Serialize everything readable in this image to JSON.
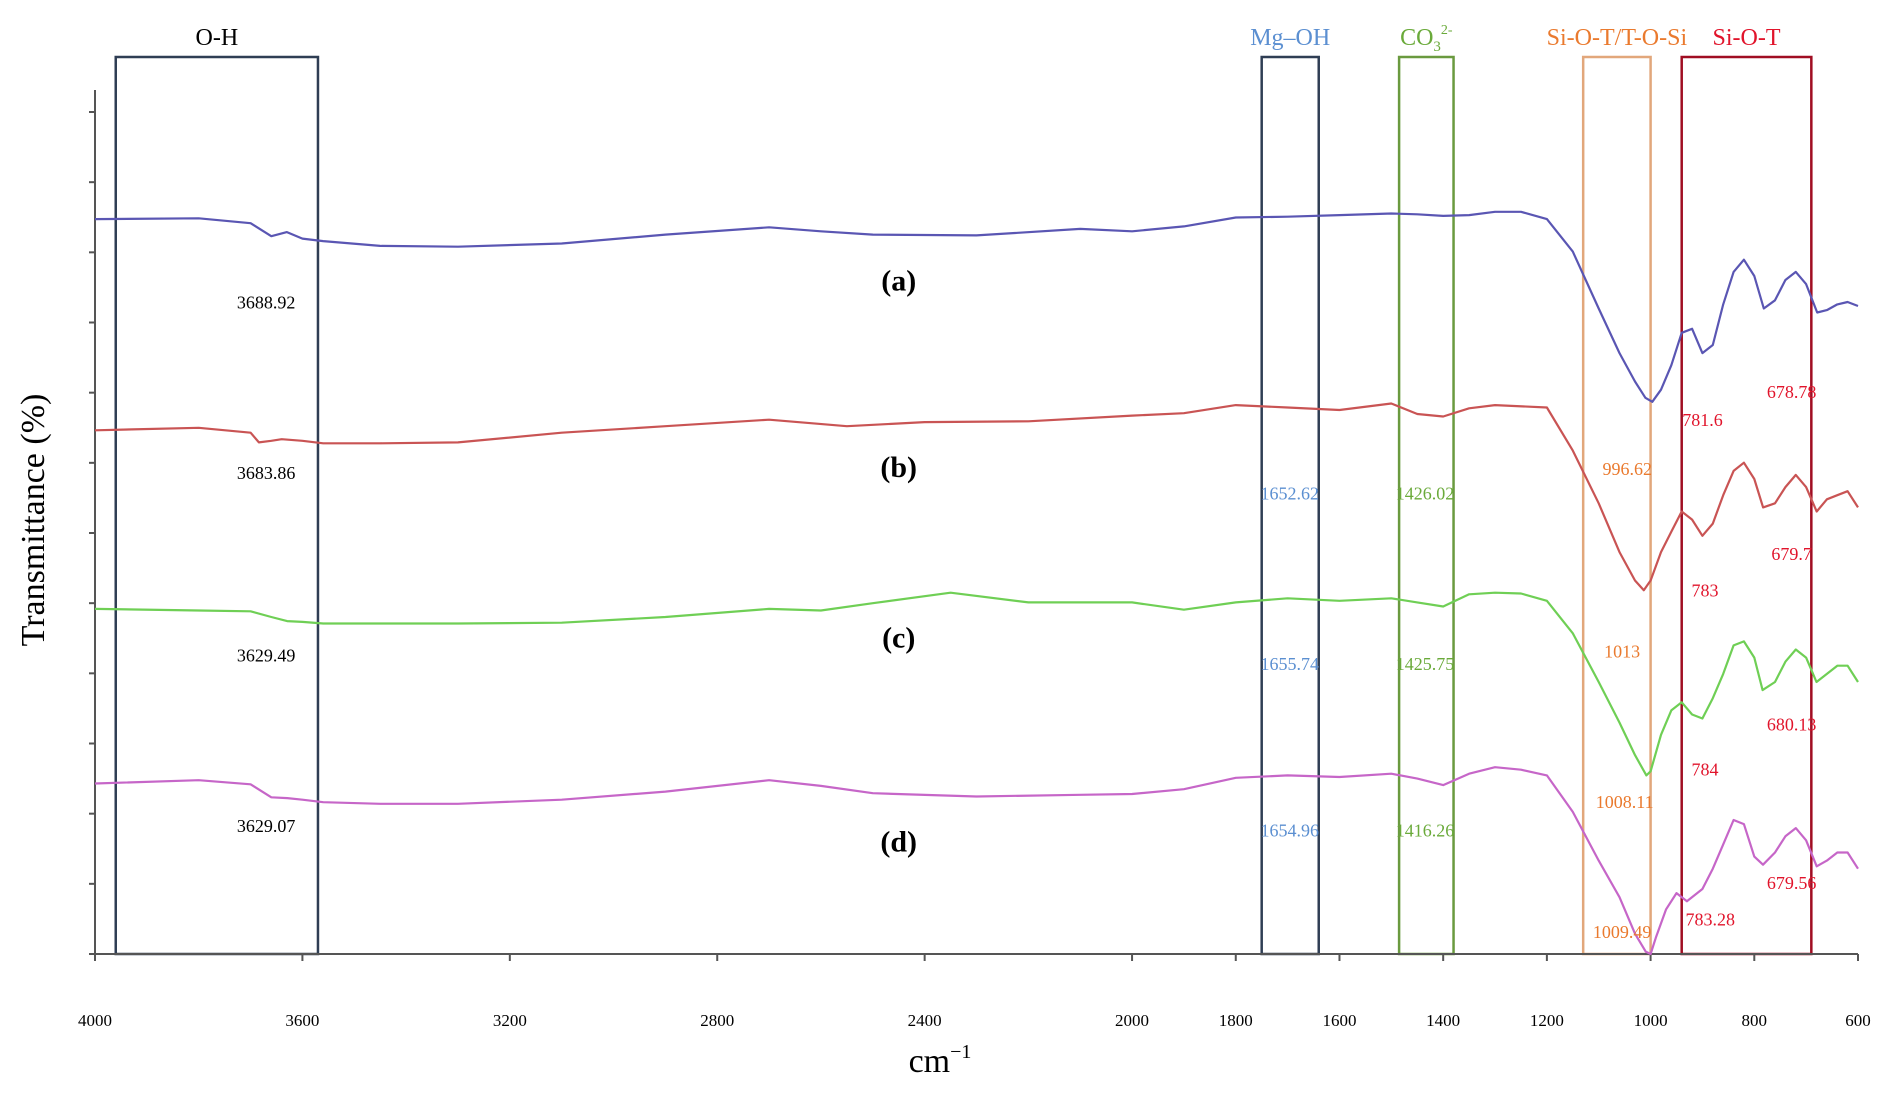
{
  "chart_data": {
    "type": "line",
    "title": "",
    "xlabel": "cm−1",
    "xlabel_base": "cm",
    "xlabel_sup": "−1",
    "ylabel": "Transmittance (%)",
    "x_reversed": true,
    "xlim": [
      4000,
      600
    ],
    "ylim": [
      0,
      100
    ],
    "x_ticks": [
      4000,
      3600,
      3200,
      2800,
      2400,
      2000,
      1800,
      1600,
      1400,
      1200,
      1000,
      800,
      600
    ],
    "x_tick_labels": [
      "4000",
      "3600",
      "3200",
      "2800",
      "2400",
      "2000",
      "1800",
      "1600",
      "1400",
      "1200",
      "1000",
      "800",
      "600"
    ],
    "y_tick_count": 13,
    "bands": [
      {
        "name": "O-H",
        "label": "O-H",
        "from": 3960,
        "to": 3570,
        "color": "#2f3e54",
        "label_color": "#000000"
      },
      {
        "name": "Mg-OH",
        "label": "Mg–OH",
        "from": 1750,
        "to": 1640,
        "color": "#2f3e54",
        "label_color": "#5b8fd1"
      },
      {
        "name": "CO3",
        "label": "CO",
        "label_sub": "3",
        "label_sup": "2-",
        "from": 1485,
        "to": 1380,
        "color": "#6a9a3f",
        "label_color": "#6aaa3a"
      },
      {
        "name": "Si-O-T/T-O-Si",
        "label": "Si-O-T/T-O-Si",
        "from": 1130,
        "to": 1000,
        "color": "#e2a77b",
        "label_color": "#ea7a2e"
      },
      {
        "name": "Si-O-T",
        "label": "Si-O-T",
        "from": 940,
        "to": 690,
        "color": "#a00d22",
        "label_color": "#e1142b"
      }
    ],
    "series": [
      {
        "name": "(a)",
        "label": "(a)",
        "color": "#5a56b3",
        "x": [
          4000,
          3800,
          3700,
          3660,
          3630,
          3600,
          3560,
          3450,
          3300,
          3100,
          2900,
          2700,
          2600,
          2500,
          2300,
          2100,
          2000,
          1900,
          1800,
          1700,
          1600,
          1500,
          1450,
          1400,
          1350,
          1300,
          1250,
          1200,
          1150,
          1100,
          1060,
          1030,
          1010,
          996.62,
          980,
          960,
          940,
          920,
          900,
          880,
          860,
          840,
          820,
          800,
          781.6,
          760,
          740,
          720,
          700,
          678.78,
          660,
          640,
          620,
          600
        ],
        "y": [
          90.5,
          90.6,
          90.0,
          88.4,
          88.9,
          88.1,
          87.8,
          87.2,
          87.1,
          87.5,
          88.6,
          89.5,
          89.0,
          88.6,
          88.5,
          89.3,
          89.0,
          89.6,
          90.7,
          90.8,
          91.0,
          91.2,
          91.1,
          90.9,
          91.0,
          91.4,
          91.4,
          90.5,
          86.5,
          79.5,
          74.0,
          70.5,
          68.5,
          68.0,
          69.5,
          72.5,
          76.5,
          77.0,
          74.0,
          75.0,
          80.0,
          84.0,
          85.5,
          83.5,
          79.5,
          80.5,
          83.0,
          84.0,
          82.5,
          79.0,
          79.3,
          80.0,
          80.3,
          79.8
        ]
      },
      {
        "name": "(b)",
        "label": "(b)",
        "color": "#c95454",
        "x": [
          4000,
          3800,
          3700,
          3683.86,
          3660,
          3640,
          3600,
          3560,
          3450,
          3300,
          3100,
          2900,
          2700,
          2550,
          2400,
          2200,
          2000,
          1900,
          1800,
          1700,
          1600,
          1500,
          1450,
          1400,
          1350,
          1300,
          1200,
          1150,
          1100,
          1060,
          1030,
          1013,
          1000,
          980,
          960,
          940,
          920,
          900,
          880,
          860,
          840,
          820,
          800,
          783,
          760,
          740,
          720,
          700,
          679.7,
          660,
          640,
          620,
          600
        ],
        "y": [
          64.5,
          64.8,
          64.2,
          63.0,
          63.2,
          63.4,
          63.2,
          62.9,
          62.9,
          63.0,
          64.2,
          65.0,
          65.8,
          65.0,
          65.5,
          65.6,
          66.3,
          66.6,
          67.6,
          67.3,
          67.0,
          67.8,
          66.5,
          66.2,
          67.2,
          67.6,
          67.3,
          62.0,
          55.5,
          49.5,
          46.0,
          44.8,
          46.0,
          49.5,
          52.0,
          54.5,
          53.5,
          51.5,
          53.0,
          56.5,
          59.5,
          60.5,
          58.5,
          55.0,
          55.5,
          57.5,
          59.0,
          57.5,
          54.5,
          56.0,
          56.5,
          57.0,
          55.0
        ]
      },
      {
        "name": "(c)",
        "label": "(c)",
        "color": "#6fcf55",
        "x": [
          4000,
          3800,
          3700,
          3660,
          3629.49,
          3600,
          3560,
          3450,
          3300,
          3100,
          2900,
          2700,
          2600,
          2500,
          2350,
          2200,
          2000,
          1900,
          1800,
          1700,
          1600,
          1500,
          1450,
          1400,
          1350,
          1300,
          1250,
          1200,
          1150,
          1100,
          1060,
          1030,
          1008.11,
          1000,
          980,
          960,
          940,
          920,
          900,
          880,
          860,
          840,
          820,
          800,
          784,
          760,
          740,
          720,
          700,
          680.13,
          660,
          640,
          620,
          600
        ],
        "y": [
          42.5,
          42.3,
          42.2,
          41.5,
          41.0,
          40.9,
          40.7,
          40.7,
          40.7,
          40.8,
          41.5,
          42.5,
          42.3,
          43.2,
          44.5,
          43.3,
          43.3,
          42.4,
          43.3,
          43.8,
          43.5,
          43.8,
          43.3,
          42.8,
          44.3,
          44.5,
          44.4,
          43.5,
          39.5,
          33.5,
          28.5,
          24.5,
          22.0,
          22.5,
          27.0,
          30.0,
          31.0,
          29.5,
          29.0,
          31.5,
          34.5,
          38.0,
          38.5,
          36.5,
          32.5,
          33.5,
          36.0,
          37.5,
          36.5,
          33.5,
          34.5,
          35.5,
          35.5,
          33.5
        ]
      },
      {
        "name": "(d)",
        "label": "(d)",
        "color": "#c666c8",
        "x": [
          4000,
          3800,
          3700,
          3660,
          3629.07,
          3600,
          3560,
          3450,
          3300,
          3100,
          2900,
          2700,
          2600,
          2500,
          2300,
          2100,
          2000,
          1900,
          1800,
          1700,
          1600,
          1500,
          1450,
          1400,
          1350,
          1300,
          1250,
          1200,
          1150,
          1100,
          1060,
          1030,
          1009.49,
          1000,
          990,
          970,
          950,
          930,
          900,
          880,
          860,
          840,
          820,
          800,
          783.28,
          760,
          740,
          720,
          700,
          679.56,
          660,
          640,
          620,
          600
        ],
        "y": [
          21.0,
          21.4,
          20.9,
          19.3,
          19.2,
          19.0,
          18.7,
          18.5,
          18.5,
          19.0,
          20.0,
          21.4,
          20.7,
          19.8,
          19.4,
          19.6,
          19.7,
          20.3,
          21.7,
          22.0,
          21.8,
          22.2,
          21.6,
          20.8,
          22.2,
          23.0,
          22.7,
          22.0,
          17.5,
          11.5,
          7.0,
          2.5,
          0.3,
          0.0,
          2.0,
          5.5,
          7.5,
          6.5,
          8.0,
          10.5,
          13.5,
          16.5,
          16.0,
          12.0,
          11.0,
          12.5,
          14.5,
          15.5,
          14.0,
          10.8,
          11.5,
          12.5,
          12.5,
          10.5
        ]
      }
    ],
    "peak_annotations": [
      {
        "text": "3688.92",
        "x": 3670,
        "y": 79.5,
        "color": "#000000"
      },
      {
        "text": "3683.86",
        "x": 3670,
        "y": 58.5,
        "color": "#000000"
      },
      {
        "text": "3629.49",
        "x": 3670,
        "y": 36.0,
        "color": "#000000"
      },
      {
        "text": "3629.07",
        "x": 3670,
        "y": 15.0,
        "color": "#000000"
      },
      {
        "text": "1652.62",
        "x": 1696,
        "y": 56.0,
        "color": "#5b8fd1"
      },
      {
        "text": "1655.74",
        "x": 1696,
        "y": 35.0,
        "color": "#5b8fd1"
      },
      {
        "text": "1654.96",
        "x": 1696,
        "y": 14.5,
        "color": "#5b8fd1"
      },
      {
        "text": "1426.02",
        "x": 1435,
        "y": 56.0,
        "color": "#6aaa3a"
      },
      {
        "text": "1425.75",
        "x": 1435,
        "y": 35.0,
        "color": "#6aaa3a"
      },
      {
        "text": "1416.26",
        "x": 1435,
        "y": 14.5,
        "color": "#6aaa3a"
      },
      {
        "text": "996.62",
        "x": 1045,
        "y": 59.0,
        "color": "#ea7a2e"
      },
      {
        "text": "1013",
        "x": 1055,
        "y": 36.5,
        "color": "#ea7a2e"
      },
      {
        "text": "1008.11",
        "x": 1050,
        "y": 18.0,
        "color": "#ea7a2e"
      },
      {
        "text": "1009.49",
        "x": 1055,
        "y": 2.0,
        "color": "#ea7a2e"
      },
      {
        "text": "781.6",
        "x": 900,
        "y": 65.0,
        "color": "#e1142b"
      },
      {
        "text": "783",
        "x": 895,
        "y": 44.0,
        "color": "#e1142b"
      },
      {
        "text": "784",
        "x": 895,
        "y": 22.0,
        "color": "#e1142b"
      },
      {
        "text": "783.28",
        "x": 885,
        "y": 3.5,
        "color": "#e1142b"
      },
      {
        "text": "678.78",
        "x": 728,
        "y": 68.5,
        "color": "#e1142b"
      },
      {
        "text": "679.7",
        "x": 728,
        "y": 48.5,
        "color": "#e1142b"
      },
      {
        "text": "680.13",
        "x": 728,
        "y": 27.5,
        "color": "#e1142b"
      },
      {
        "text": "679.56",
        "x": 728,
        "y": 8.0,
        "color": "#e1142b"
      }
    ]
  }
}
